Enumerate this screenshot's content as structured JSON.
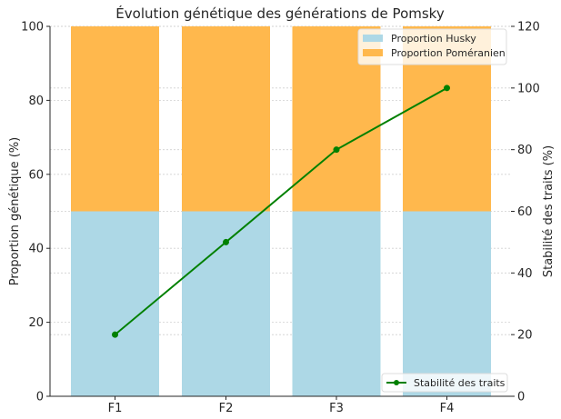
{
  "chart_data": {
    "type": "bar",
    "title": "Évolution génétique des générations de Pomsky",
    "xlabel": "",
    "ylabel": "Proportion génétique (%)",
    "ylabel_right": "Stabilité des traits (%)",
    "categories": [
      "F1",
      "F2",
      "F3",
      "F4"
    ],
    "stacked": true,
    "ylim": [
      0,
      100
    ],
    "ylim_right": [
      0,
      120
    ],
    "yticks": [
      0,
      20,
      40,
      60,
      80,
      100
    ],
    "yticks_right": [
      0,
      20,
      40,
      60,
      80,
      100,
      120
    ],
    "grid": true,
    "series": [
      {
        "name": "Proportion Husky",
        "type": "bar",
        "axis": "left",
        "color": "#add8e6",
        "values": [
          50,
          50,
          50,
          50
        ]
      },
      {
        "name": "Proportion Poméranien",
        "type": "bar",
        "axis": "left",
        "color": "#ffb84d",
        "values": [
          50,
          50,
          50,
          50
        ]
      },
      {
        "name": "Stabilité des traits",
        "type": "line",
        "axis": "right",
        "color": "#008000",
        "marker": "o",
        "values": [
          20,
          50,
          80,
          100
        ]
      }
    ],
    "legend": {
      "upper_right": [
        "Proportion Husky",
        "Proportion Poméranien"
      ],
      "lower_right": [
        "Stabilité des traits"
      ]
    }
  }
}
